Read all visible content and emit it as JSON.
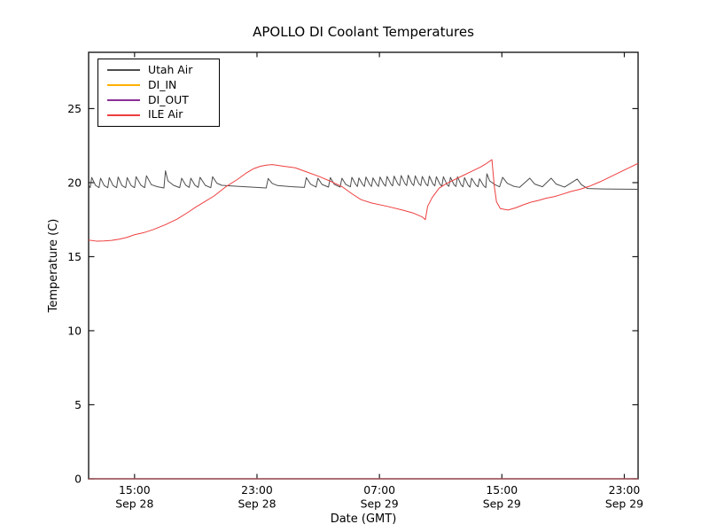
{
  "chart_data": {
    "type": "line",
    "title": "APOLLO DI Coolant Temperatures",
    "xlabel": "Date (GMT)",
    "ylabel": "Temperature (C)",
    "x_unit": "hours since Sep 28 12:00 GMT",
    "xlim": [
      0,
      35.9
    ],
    "ylim": [
      0,
      28.8
    ],
    "yticks": [
      0,
      5,
      10,
      15,
      20,
      25
    ],
    "xticks": [
      {
        "t": 3,
        "time": "15:00",
        "date": "Sep 28"
      },
      {
        "t": 11,
        "time": "23:00",
        "date": "Sep 28"
      },
      {
        "t": 19,
        "time": "07:00",
        "date": "Sep 29"
      },
      {
        "t": 27,
        "time": "15:00",
        "date": "Sep 29"
      },
      {
        "t": 35,
        "time": "23:00",
        "date": "Sep 29"
      }
    ],
    "grid": false,
    "legend_position": "upper left",
    "axis_color": "#1a1a1a",
    "series": [
      {
        "name": "Utah Air",
        "color": "#4d4d4d",
        "width": 1.0,
        "points": [
          [
            0,
            19.85
          ],
          [
            0.1,
            19.66
          ],
          [
            0.2,
            20.35
          ],
          [
            0.45,
            19.82
          ],
          [
            0.68,
            19.66
          ],
          [
            0.78,
            20.3
          ],
          [
            1.02,
            19.8
          ],
          [
            1.25,
            19.66
          ],
          [
            1.35,
            20.34
          ],
          [
            1.6,
            19.8
          ],
          [
            1.83,
            19.66
          ],
          [
            1.93,
            20.38
          ],
          [
            2.18,
            19.8
          ],
          [
            2.42,
            19.66
          ],
          [
            2.52,
            20.34
          ],
          [
            2.78,
            19.8
          ],
          [
            3.0,
            19.66
          ],
          [
            3.1,
            20.4
          ],
          [
            3.42,
            19.82
          ],
          [
            3.66,
            19.66
          ],
          [
            3.78,
            20.46
          ],
          [
            4.1,
            19.86
          ],
          [
            4.5,
            19.72
          ],
          [
            4.92,
            19.64
          ],
          [
            5.02,
            20.8
          ],
          [
            5.18,
            20.12
          ],
          [
            5.55,
            19.82
          ],
          [
            5.95,
            19.66
          ],
          [
            6.08,
            20.3
          ],
          [
            6.35,
            19.82
          ],
          [
            6.57,
            19.68
          ],
          [
            6.68,
            20.3
          ],
          [
            6.95,
            19.82
          ],
          [
            7.16,
            19.68
          ],
          [
            7.28,
            20.36
          ],
          [
            7.62,
            19.82
          ],
          [
            7.98,
            19.66
          ],
          [
            8.1,
            20.4
          ],
          [
            8.38,
            19.96
          ],
          [
            8.7,
            19.82
          ],
          [
            9.6,
            19.76
          ],
          [
            10.6,
            19.7
          ],
          [
            11.6,
            19.64
          ],
          [
            11.73,
            20.28
          ],
          [
            12.0,
            19.94
          ],
          [
            12.35,
            19.8
          ],
          [
            13.2,
            19.73
          ],
          [
            14.1,
            19.68
          ],
          [
            14.22,
            20.34
          ],
          [
            14.5,
            19.9
          ],
          [
            14.86,
            19.7
          ],
          [
            14.98,
            20.3
          ],
          [
            15.25,
            19.88
          ],
          [
            15.67,
            19.7
          ],
          [
            15.79,
            20.34
          ],
          [
            16.05,
            19.88
          ],
          [
            16.43,
            19.7
          ],
          [
            16.55,
            20.3
          ],
          [
            16.8,
            19.88
          ],
          [
            17.1,
            19.72
          ],
          [
            17.2,
            20.36
          ],
          [
            17.45,
            19.88
          ],
          [
            17.56,
            19.74
          ],
          [
            17.66,
            20.32
          ],
          [
            17.9,
            19.88
          ],
          [
            18.02,
            19.74
          ],
          [
            18.12,
            20.38
          ],
          [
            18.36,
            19.88
          ],
          [
            18.48,
            19.74
          ],
          [
            18.58,
            20.32
          ],
          [
            18.82,
            19.88
          ],
          [
            18.94,
            19.74
          ],
          [
            19.04,
            20.38
          ],
          [
            19.28,
            19.9
          ],
          [
            19.4,
            19.76
          ],
          [
            19.5,
            20.42
          ],
          [
            19.74,
            19.92
          ],
          [
            19.86,
            19.78
          ],
          [
            19.96,
            20.44
          ],
          [
            20.2,
            19.92
          ],
          [
            20.32,
            19.8
          ],
          [
            20.42,
            20.48
          ],
          [
            20.66,
            19.94
          ],
          [
            20.78,
            19.8
          ],
          [
            20.88,
            20.5
          ],
          [
            21.12,
            19.94
          ],
          [
            21.24,
            19.8
          ],
          [
            21.34,
            20.46
          ],
          [
            21.58,
            19.92
          ],
          [
            21.7,
            19.8
          ],
          [
            21.8,
            20.42
          ],
          [
            22.04,
            19.9
          ],
          [
            22.16,
            19.78
          ],
          [
            22.26,
            20.44
          ],
          [
            22.5,
            19.9
          ],
          [
            22.62,
            19.78
          ],
          [
            22.72,
            20.4
          ],
          [
            22.96,
            19.88
          ],
          [
            23.08,
            19.76
          ],
          [
            23.18,
            20.4
          ],
          [
            23.42,
            19.86
          ],
          [
            23.54,
            19.75
          ],
          [
            23.64,
            20.36
          ],
          [
            23.88,
            19.85
          ],
          [
            24.0,
            19.74
          ],
          [
            24.1,
            20.4
          ],
          [
            24.34,
            19.84
          ],
          [
            24.46,
            19.72
          ],
          [
            24.56,
            20.34
          ],
          [
            24.8,
            19.82
          ],
          [
            24.92,
            19.7
          ],
          [
            25.02,
            20.3
          ],
          [
            25.3,
            19.84
          ],
          [
            25.44,
            19.72
          ],
          [
            25.54,
            20.26
          ],
          [
            25.8,
            19.8
          ],
          [
            25.95,
            19.66
          ],
          [
            26.02,
            20.6
          ],
          [
            26.2,
            20.12
          ],
          [
            26.55,
            19.86
          ],
          [
            26.85,
            19.72
          ],
          [
            27.05,
            20.36
          ],
          [
            27.35,
            19.96
          ],
          [
            27.75,
            19.76
          ],
          [
            28.15,
            19.68
          ],
          [
            28.82,
            20.3
          ],
          [
            29.15,
            19.9
          ],
          [
            29.65,
            19.72
          ],
          [
            30.22,
            20.3
          ],
          [
            30.55,
            19.9
          ],
          [
            31.1,
            19.7
          ],
          [
            31.92,
            20.24
          ],
          [
            32.2,
            19.86
          ],
          [
            32.6,
            19.6
          ],
          [
            33.6,
            19.57
          ],
          [
            35.9,
            19.55
          ]
        ]
      },
      {
        "name": "DI_IN",
        "color": "#ffb000",
        "width": 1.2,
        "opacity": 0.9,
        "points": [
          [
            0,
            0
          ],
          [
            35.9,
            0
          ]
        ]
      },
      {
        "name": "DI_OUT",
        "color": "#8b2f97",
        "width": 1.2,
        "opacity": 0.7,
        "points": [
          [
            0,
            0
          ],
          [
            35.9,
            0
          ]
        ]
      },
      {
        "name": "ILE Air",
        "color": "#ee3f3f",
        "width": 1.0,
        "points": [
          [
            0,
            16.12
          ],
          [
            0.5,
            16.05
          ],
          [
            1.0,
            16.06
          ],
          [
            1.5,
            16.1
          ],
          [
            2.0,
            16.18
          ],
          [
            2.5,
            16.3
          ],
          [
            3.0,
            16.48
          ],
          [
            3.6,
            16.62
          ],
          [
            4.2,
            16.82
          ],
          [
            5.0,
            17.15
          ],
          [
            5.8,
            17.55
          ],
          [
            6.5,
            18.0
          ],
          [
            7.0,
            18.35
          ],
          [
            7.6,
            18.72
          ],
          [
            8.2,
            19.1
          ],
          [
            9.0,
            19.75
          ],
          [
            9.7,
            20.2
          ],
          [
            10.3,
            20.65
          ],
          [
            10.8,
            20.95
          ],
          [
            11.2,
            21.1
          ],
          [
            11.6,
            21.18
          ],
          [
            12.0,
            21.22
          ],
          [
            12.4,
            21.16
          ],
          [
            12.8,
            21.1
          ],
          [
            13.5,
            21.0
          ],
          [
            14.3,
            20.7
          ],
          [
            15.1,
            20.4
          ],
          [
            15.9,
            20.05
          ],
          [
            16.6,
            19.7
          ],
          [
            17.2,
            19.25
          ],
          [
            17.8,
            18.85
          ],
          [
            18.5,
            18.62
          ],
          [
            19.5,
            18.4
          ],
          [
            20.5,
            18.15
          ],
          [
            21.2,
            17.95
          ],
          [
            21.8,
            17.68
          ],
          [
            22.0,
            17.5
          ],
          [
            22.15,
            18.4
          ],
          [
            22.45,
            19.0
          ],
          [
            22.9,
            19.63
          ],
          [
            23.4,
            19.95
          ],
          [
            24.0,
            20.25
          ],
          [
            24.5,
            20.5
          ],
          [
            25.0,
            20.75
          ],
          [
            25.6,
            21.05
          ],
          [
            26.0,
            21.3
          ],
          [
            26.35,
            21.55
          ],
          [
            26.5,
            19.8
          ],
          [
            26.65,
            18.7
          ],
          [
            26.9,
            18.25
          ],
          [
            27.4,
            18.15
          ],
          [
            27.9,
            18.3
          ],
          [
            28.4,
            18.5
          ],
          [
            28.9,
            18.68
          ],
          [
            29.4,
            18.8
          ],
          [
            29.9,
            18.95
          ],
          [
            30.4,
            19.05
          ],
          [
            30.9,
            19.2
          ],
          [
            31.5,
            19.4
          ],
          [
            32.1,
            19.55
          ],
          [
            32.7,
            19.75
          ],
          [
            33.4,
            20.05
          ],
          [
            34.1,
            20.4
          ],
          [
            34.8,
            20.75
          ],
          [
            35.4,
            21.05
          ],
          [
            35.9,
            21.3
          ]
        ]
      }
    ]
  }
}
